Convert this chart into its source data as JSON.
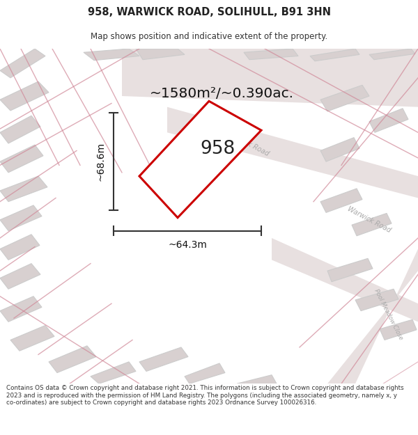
{
  "title": "958, WARWICK ROAD, SOLIHULL, B91 3HN",
  "subtitle": "Map shows position and indicative extent of the property.",
  "area_text": "~1580m²/~0.390ac.",
  "label_958": "958",
  "dim_width": "~64.3m",
  "dim_height": "~68.6m",
  "footer_text": "Contains OS data © Crown copyright and database right 2021. This information is subject to Crown copyright and database rights 2023 and is reproduced with the permission of HM Land Registry. The polygons (including the associated geometry, namely x, y co-ordinates) are subject to Crown copyright and database rights 2023 Ordnance Survey 100026316.",
  "map_bg": "#f5efef",
  "plot_color": "#cc0000",
  "dim_line_color": "#333333",
  "road_label_color": "#aaaaaa",
  "gray_fill": "#d8d0d0",
  "gray_edge": "#cccccc",
  "pink_edge": "#e8aaaa",
  "road_fill": "#e8e0e0",
  "road_edge": "#d0c0c0"
}
